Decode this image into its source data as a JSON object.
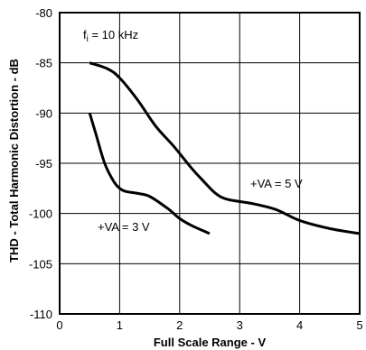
{
  "chart_data": {
    "type": "line",
    "xlabel": "Full Scale Range - V",
    "ylabel": "THD - Total Harmonic Distortion - dB",
    "xlim": [
      0,
      5
    ],
    "ylim": [
      -110,
      -80
    ],
    "x_ticks": [
      "0",
      "1",
      "2",
      "3",
      "4",
      "5"
    ],
    "y_ticks": [
      "-80",
      "-85",
      "-90",
      "-95",
      "-100",
      "-105",
      "-110"
    ],
    "grid": true,
    "annotations": {
      "condition": {
        "main": "f",
        "sub": "i",
        "rest": " = 10 kHz"
      }
    },
    "series": [
      {
        "name": "+VA = 5 V",
        "x": [
          0.5,
          0.8,
          1.0,
          1.3,
          1.6,
          1.9,
          2.2,
          2.4,
          2.6,
          2.8,
          3.2,
          3.6,
          4.0,
          4.5,
          5.0
        ],
        "y": [
          -85.0,
          -85.6,
          -86.5,
          -88.7,
          -91.3,
          -93.3,
          -95.5,
          -96.8,
          -98.0,
          -98.6,
          -99.0,
          -99.6,
          -100.7,
          -101.5,
          -102.0
        ]
      },
      {
        "name": "+VA = 3 V",
        "x": [
          0.5,
          0.6,
          0.75,
          0.9,
          1.0,
          1.1,
          1.3,
          1.5,
          1.8,
          2.0,
          2.2,
          2.5
        ],
        "y": [
          -90.0,
          -92.0,
          -95.0,
          -96.8,
          -97.5,
          -97.8,
          -98.0,
          -98.3,
          -99.5,
          -100.5,
          -101.2,
          -102.0
        ]
      }
    ]
  }
}
